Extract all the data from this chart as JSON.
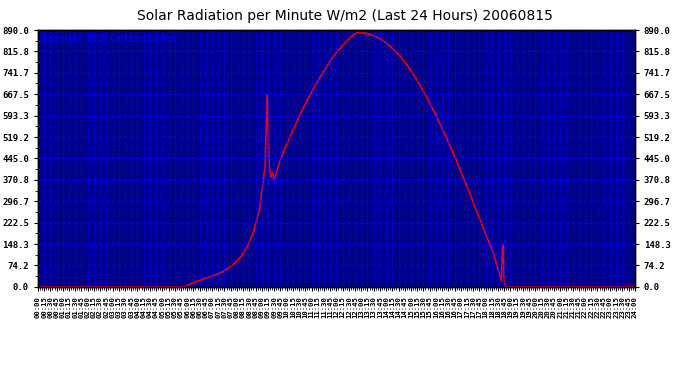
{
  "title": "Solar Radiation per Minute W/m2 (Last 24 Hours) 20060815",
  "copyright_text": "Copyright 2006 Cartronics.com",
  "line_color": "#ff0000",
  "grid_color": "#0000ff",
  "plot_bg_color": "#000080",
  "outer_bg_color": "#ffffff",
  "title_color": "#000000",
  "copyright_color": "#0000ff",
  "y_tick_labels": [
    "0.0",
    "74.2",
    "148.3",
    "222.5",
    "296.7",
    "370.8",
    "445.0",
    "519.2",
    "593.3",
    "667.5",
    "741.7",
    "815.8",
    "890.0"
  ],
  "y_tick_values": [
    0.0,
    74.2,
    148.3,
    222.5,
    296.7,
    370.8,
    445.0,
    519.2,
    593.3,
    667.5,
    741.7,
    815.8,
    890.0
  ],
  "ylim": [
    0.0,
    890.0
  ],
  "key_times": [
    0,
    355,
    360,
    370,
    380,
    390,
    400,
    415,
    430,
    445,
    460,
    475,
    490,
    505,
    520,
    535,
    548,
    553,
    558,
    562,
    566,
    570,
    578,
    590,
    605,
    620,
    635,
    650,
    665,
    680,
    695,
    710,
    725,
    740,
    755,
    770,
    785,
    800,
    815,
    830,
    845,
    860,
    875,
    890,
    905,
    920,
    935,
    950,
    965,
    980,
    995,
    1010,
    1025,
    1040,
    1055,
    1070,
    1085,
    1100,
    1112,
    1118,
    1121,
    1123,
    1125,
    1127,
    1130,
    1145,
    1160,
    1440
  ],
  "key_vals": [
    0,
    0,
    5,
    12,
    18,
    22,
    28,
    35,
    42,
    52,
    65,
    82,
    105,
    140,
    190,
    270,
    420,
    667,
    420,
    380,
    395,
    370,
    410,
    460,
    510,
    558,
    605,
    648,
    688,
    725,
    760,
    793,
    820,
    845,
    867,
    882,
    880,
    876,
    868,
    856,
    840,
    820,
    797,
    770,
    738,
    703,
    665,
    624,
    580,
    534,
    486,
    436,
    384,
    330,
    275,
    220,
    165,
    112,
    50,
    20,
    148,
    130,
    18,
    8,
    0,
    0,
    0,
    0
  ]
}
